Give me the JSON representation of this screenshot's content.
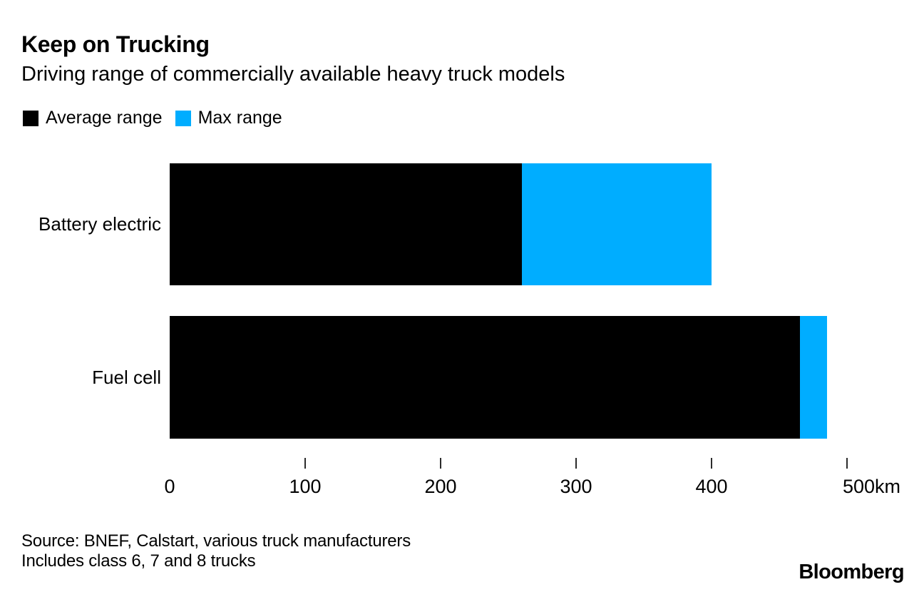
{
  "header": {
    "title": "Keep on Trucking",
    "subtitle": "Driving range of commercially available heavy truck models"
  },
  "chart_data": {
    "type": "bar",
    "orientation": "horizontal",
    "stacked": true,
    "title": "Keep on Trucking",
    "subtitle": "Driving range of commercially available heavy truck models",
    "categories": [
      "Battery electric",
      "Fuel cell"
    ],
    "series": [
      {
        "name": "Average range",
        "color": "#000000",
        "values": [
          260,
          465
        ]
      },
      {
        "name": "Max range",
        "color": "#00adff",
        "values": [
          400,
          485
        ]
      }
    ],
    "series_note": "Max range values are absolute totals; blue segment is drawn from average to max",
    "xlim": [
      0,
      500
    ],
    "x_ticks": [
      0,
      100,
      200,
      300,
      400,
      500
    ],
    "x_unit": "km",
    "ylabel": "",
    "xlabel": "",
    "grid": false,
    "legend_position": "top-left"
  },
  "footer": {
    "source_line1": "Source: BNEF, Calstart, various truck manufacturers",
    "source_line2": "Includes class 6, 7 and 8 trucks",
    "logo": "Bloomberg"
  }
}
